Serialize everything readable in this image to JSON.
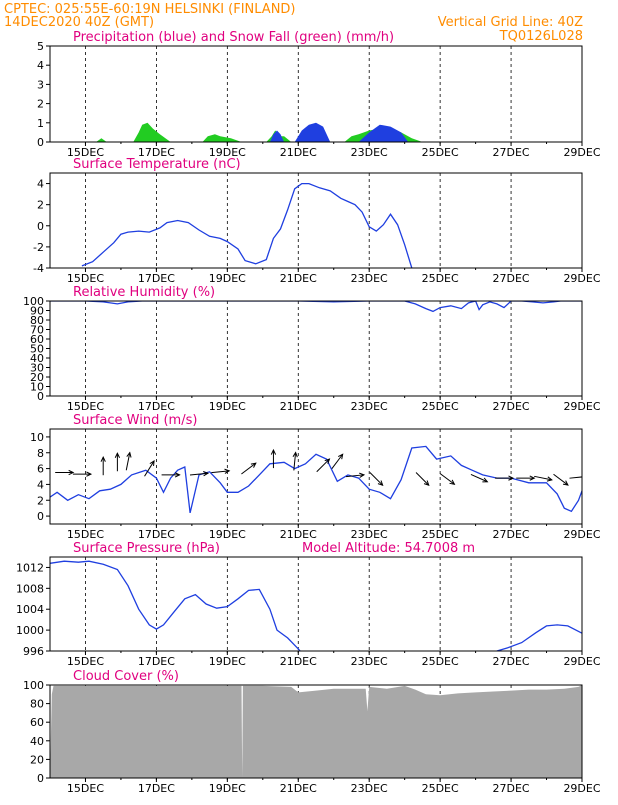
{
  "header": {
    "left_line1": "CPTEC:   025:55E-60:19N   HELSINKI (FINLAND)",
    "left_line2": "14DEC2020 40Z (GMT)",
    "right_line1": "Vertical Grid Line: 40Z",
    "right_line2": "TQ0126L028",
    "text_color": "#ff8c00"
  },
  "x_axis": {
    "ticks": [
      "15DEC",
      "17DEC",
      "19DEC",
      "21DEC",
      "23DEC",
      "25DEC",
      "27DEC",
      "29DEC"
    ],
    "tick_days": [
      15,
      17,
      19,
      21,
      23,
      25,
      27,
      29
    ],
    "range_days": [
      14,
      29
    ]
  },
  "colors": {
    "title": "#e0007f",
    "line": "#1f3fe0",
    "rain": "#1f3fe0",
    "snow": "#22cc22",
    "cloud": "#a8a8a8",
    "grid": "#000000"
  },
  "chart_data": [
    {
      "type": "area",
      "title": "Precipitation (blue) and Snow Fall (green) (mm/h)",
      "ylim": [
        0,
        5
      ],
      "yticks": [
        "0",
        "1",
        "2",
        "3",
        "4",
        "5"
      ],
      "series": [
        {
          "name": "Snow Fall",
          "color": "#22cc22",
          "x": [
            15.3,
            15.45,
            15.6,
            16.35,
            16.5,
            16.6,
            16.75,
            16.9,
            17.1,
            17.4,
            18.3,
            18.45,
            18.65,
            18.8,
            19.1,
            19.4,
            20.1,
            20.25,
            20.35,
            20.5,
            20.6,
            20.8,
            22.3,
            22.5,
            22.7,
            23.0,
            23.3,
            23.6,
            23.9,
            24.2,
            24.5
          ],
          "y": [
            0,
            0.2,
            0,
            0,
            0.5,
            0.9,
            1.0,
            0.7,
            0.4,
            0,
            0,
            0.3,
            0.4,
            0.3,
            0.2,
            0,
            0,
            0.3,
            0.6,
            0.3,
            0.3,
            0,
            0,
            0.3,
            0.4,
            0.6,
            0.7,
            0.7,
            0.5,
            0.2,
            0
          ]
        },
        {
          "name": "Precipitation",
          "color": "#1f3fe0",
          "x": [
            20.2,
            20.3,
            20.4,
            20.5,
            20.6,
            20.9,
            21.1,
            21.3,
            21.5,
            21.7,
            21.9,
            22.7,
            23.0,
            23.3,
            23.6,
            23.9,
            24.1
          ],
          "y": [
            0,
            0.4,
            0.6,
            0.4,
            0,
            0,
            0.6,
            0.9,
            1.0,
            0.8,
            0,
            0,
            0.5,
            0.9,
            0.8,
            0.5,
            0
          ]
        }
      ]
    },
    {
      "type": "line",
      "title": "Surface Temperature (nC)",
      "ylim": [
        -4,
        5
      ],
      "yticks": [
        "-4",
        "-2",
        "0",
        "2",
        "4"
      ],
      "ytick_values": [
        -4,
        -2,
        0,
        2,
        4
      ],
      "series": [
        {
          "name": "",
          "color": "#1f3fe0",
          "x": [
            14.9,
            15.2,
            15.5,
            15.8,
            16.0,
            16.2,
            16.5,
            16.8,
            17.1,
            17.3,
            17.6,
            17.9,
            18.2,
            18.5,
            18.8,
            19.0,
            19.3,
            19.5,
            19.8,
            20.1,
            20.3,
            20.5,
            20.7,
            20.9,
            21.1,
            21.3,
            21.6,
            21.9,
            22.2,
            22.4,
            22.6,
            22.8,
            23.0,
            23.2,
            23.4,
            23.6,
            23.8,
            24.0,
            24.2
          ],
          "y": [
            -3.8,
            -3.4,
            -2.5,
            -1.6,
            -0.8,
            -0.6,
            -0.5,
            -0.6,
            -0.2,
            0.3,
            0.5,
            0.3,
            -0.4,
            -1.0,
            -1.2,
            -1.5,
            -2.2,
            -3.3,
            -3.6,
            -3.2,
            -1.2,
            -0.3,
            1.5,
            3.5,
            4.0,
            4.0,
            3.6,
            3.3,
            2.6,
            2.3,
            2.0,
            1.3,
            -0.1,
            -0.5,
            0.1,
            1.1,
            0.1,
            -1.8,
            -4.0
          ]
        }
      ]
    },
    {
      "type": "line",
      "title": "Relative Humidity (%)",
      "ylim": [
        0,
        100
      ],
      "yticks": [
        "0",
        "10",
        "20",
        "30",
        "40",
        "50",
        "60",
        "70",
        "80",
        "90",
        "100"
      ],
      "series": [
        {
          "name": "",
          "color": "#1f3fe0",
          "x": [
            14,
            14.5,
            15.0,
            15.5,
            15.9,
            16.2,
            16.6,
            17.0,
            17.5,
            18.0,
            19.0,
            20.0,
            21.0,
            22.0,
            23.0,
            24.0,
            24.3,
            24.6,
            24.8,
            25.0,
            25.3,
            25.6,
            25.8,
            26.0,
            26.1,
            26.2,
            26.4,
            26.6,
            26.8,
            27.0,
            27.3,
            27.6,
            27.9,
            28.2,
            28.4,
            28.6,
            29.0
          ],
          "y": [
            100,
            100,
            100,
            99,
            97,
            99,
            100,
            100,
            100,
            100,
            100,
            100,
            100,
            99,
            100,
            100,
            97,
            92,
            89,
            93,
            95,
            92,
            98,
            100,
            91,
            96,
            99,
            97,
            93,
            100,
            100,
            99,
            98,
            99,
            100,
            100,
            100
          ]
        }
      ]
    },
    {
      "type": "line",
      "title": "Surface Wind (m/s)",
      "ylim": [
        -1,
        11
      ],
      "yticks": [
        "0",
        "2",
        "4",
        "6",
        "8",
        "10"
      ],
      "ytick_values": [
        0,
        2,
        4,
        6,
        8,
        10
      ],
      "series": [
        {
          "name": "",
          "color": "#1f3fe0",
          "x": [
            14.0,
            14.2,
            14.5,
            14.8,
            15.1,
            15.4,
            15.7,
            16.0,
            16.3,
            16.7,
            17.0,
            17.2,
            17.4,
            17.6,
            17.8,
            17.95,
            18.2,
            18.5,
            18.8,
            19.0,
            19.3,
            19.6,
            19.9,
            20.2,
            20.6,
            20.9,
            21.2,
            21.5,
            21.8,
            22.1,
            22.4,
            22.7,
            23.0,
            23.3,
            23.6,
            23.9,
            24.2,
            24.6,
            24.9,
            25.3,
            25.6,
            25.9,
            26.2,
            26.6,
            27.0,
            27.5,
            28.0,
            28.3,
            28.5,
            28.7,
            28.9,
            29.0
          ],
          "y": [
            2.4,
            3.0,
            2.0,
            2.7,
            2.2,
            3.2,
            3.4,
            4.0,
            5.2,
            5.8,
            4.8,
            3.0,
            4.8,
            5.8,
            6.2,
            0.4,
            5.2,
            5.6,
            4.2,
            3.0,
            3.0,
            3.8,
            5.2,
            6.6,
            6.8,
            6.0,
            6.6,
            7.8,
            7.2,
            4.4,
            5.2,
            4.8,
            3.4,
            3.0,
            2.2,
            4.6,
            8.6,
            8.8,
            7.2,
            7.6,
            6.4,
            5.8,
            5.2,
            4.8,
            4.8,
            4.2,
            4.2,
            2.8,
            1.0,
            0.6,
            2.0,
            3.2
          ]
        }
      ]
    },
    {
      "type": "line",
      "title": "Surface Pressure (hPa)",
      "annotation": "Model Altitude: 54.7008 m",
      "ylim": [
        996,
        1014
      ],
      "yticks": [
        "996",
        "1000",
        "1004",
        "1008",
        "1012"
      ],
      "ytick_values": [
        996,
        1000,
        1004,
        1008,
        1012
      ],
      "series": [
        {
          "name": "",
          "color": "#1f3fe0",
          "x": [
            14.0,
            14.4,
            14.8,
            15.1,
            15.5,
            15.9,
            16.2,
            16.5,
            16.8,
            17.0,
            17.2,
            17.5,
            17.8,
            18.1,
            18.4,
            18.7,
            19.0,
            19.3,
            19.6,
            19.9,
            20.2,
            20.4,
            20.7,
            21.0,
            21.3
          ],
          "y": [
            1012.8,
            1013.2,
            1013.0,
            1013.2,
            1012.6,
            1011.6,
            1008.5,
            1004.0,
            1001.0,
            1000.2,
            1001.0,
            1003.5,
            1006.0,
            1006.8,
            1005.0,
            1004.2,
            1004.5,
            1006.0,
            1007.6,
            1007.8,
            1004.0,
            1000.0,
            998.5,
            996.4,
            994.0
          ]
        },
        {
          "name": "",
          "color": "#1f3fe0",
          "x": [
            26.6,
            26.9,
            27.3,
            27.7,
            28.0,
            28.3,
            28.6,
            29.0
          ],
          "y": [
            996.0,
            996.6,
            997.6,
            999.5,
            1000.8,
            1001.0,
            1000.8,
            999.4
          ]
        }
      ]
    },
    {
      "type": "area",
      "title": "Cloud Cover (%)",
      "ylim": [
        0,
        100
      ],
      "yticks": [
        "0",
        "20",
        "40",
        "60",
        "80",
        "100"
      ],
      "ytick_values": [
        0,
        20,
        40,
        60,
        80,
        100
      ],
      "series": [
        {
          "name": "",
          "color": "#a8a8a8",
          "x": [
            14.0,
            14.05,
            14.1,
            16.0,
            19.4,
            19.42,
            19.44,
            20.0,
            20.8,
            21.0,
            21.5,
            22.0,
            22.9,
            22.95,
            23.0,
            23.5,
            24.0,
            24.3,
            24.6,
            25.0,
            25.5,
            26.0,
            26.5,
            27.0,
            27.5,
            28.0,
            28.5,
            28.9,
            29.0
          ],
          "y": [
            0,
            90,
            99,
            99,
            99,
            0,
            99,
            99,
            98,
            92,
            94,
            96,
            96,
            72,
            98,
            96,
            99,
            95,
            90,
            89,
            91,
            92,
            93,
            94,
            95,
            95,
            96,
            98,
            100
          ]
        }
      ]
    }
  ],
  "wind_arrows": [
    {
      "day": 14.4,
      "speed": 5.5,
      "dx": 1,
      "dy": 0
    },
    {
      "day": 14.9,
      "speed": 5.3,
      "dx": 1,
      "dy": 0
    },
    {
      "day": 15.5,
      "speed": 6.3,
      "dx": 0,
      "dy": 1
    },
    {
      "day": 15.9,
      "speed": 6.8,
      "dx": 0,
      "dy": 1
    },
    {
      "day": 16.2,
      "speed": 6.9,
      "dx": 0.2,
      "dy": 1
    },
    {
      "day": 16.8,
      "speed": 6.0,
      "dx": 0.5,
      "dy": 0.8
    },
    {
      "day": 17.4,
      "speed": 5.2,
      "dx": 1,
      "dy": 0
    },
    {
      "day": 18.2,
      "speed": 5.3,
      "dx": 1,
      "dy": 0.1
    },
    {
      "day": 18.8,
      "speed": 5.6,
      "dx": 1,
      "dy": 0.1
    },
    {
      "day": 19.6,
      "speed": 6.0,
      "dx": 0.8,
      "dy": 0.6
    },
    {
      "day": 20.3,
      "speed": 7.2,
      "dx": 0,
      "dy": 1
    },
    {
      "day": 20.9,
      "speed": 6.9,
      "dx": 0.1,
      "dy": 1
    },
    {
      "day": 21.7,
      "speed": 6.4,
      "dx": 0.7,
      "dy": 0.7
    },
    {
      "day": 22.1,
      "speed": 6.9,
      "dx": 0.6,
      "dy": 0.8
    },
    {
      "day": 22.6,
      "speed": 5.1,
      "dx": 1,
      "dy": 0.1
    },
    {
      "day": 23.2,
      "speed": 4.7,
      "dx": 0.7,
      "dy": -0.7
    },
    {
      "day": 24.5,
      "speed": 4.7,
      "dx": 0.7,
      "dy": -0.7
    },
    {
      "day": 25.2,
      "speed": 4.7,
      "dx": 0.8,
      "dy": -0.6
    },
    {
      "day": 26.1,
      "speed": 4.8,
      "dx": 0.9,
      "dy": -0.4
    },
    {
      "day": 26.8,
      "speed": 4.8,
      "dx": 1,
      "dy": 0
    },
    {
      "day": 27.4,
      "speed": 4.8,
      "dx": 1,
      "dy": 0
    },
    {
      "day": 27.9,
      "speed": 4.8,
      "dx": 1,
      "dy": -0.2
    },
    {
      "day": 28.4,
      "speed": 4.6,
      "dx": 0.8,
      "dy": -0.6
    },
    {
      "day": 28.9,
      "speed": 4.9,
      "dx": 1,
      "dy": 0.1
    }
  ]
}
